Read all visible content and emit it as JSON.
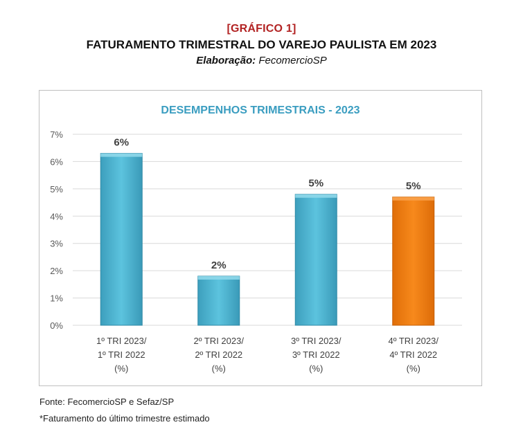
{
  "header": {
    "tag": "[GRÁFICO 1]",
    "title": "FATURAMENTO TRIMESTRAL DO VAREJO PAULISTA EM 2023",
    "credit_label": "Elaboração:",
    "credit_value": "FecomercioSP"
  },
  "chart_data": {
    "type": "bar",
    "title": "DESEMPENHOS TRIMESTRAIS - 2023",
    "categories": [
      [
        "1º TRI 2023/",
        "1º TRI 2022",
        "(%)"
      ],
      [
        "2º TRI 2023/",
        "2º TRI 2022",
        "(%)"
      ],
      [
        "3º TRI 2023/",
        "3º TRI 2022",
        "(%)"
      ],
      [
        "4º TRI 2023/",
        "4º TRI 2022",
        "(%)"
      ]
    ],
    "values": [
      6.3,
      1.8,
      4.8,
      4.7
    ],
    "data_labels": [
      "6%",
      "2%",
      "5%",
      "5%"
    ],
    "ylim": [
      0,
      7
    ],
    "yticks": [
      "0%",
      "1%",
      "2%",
      "3%",
      "4%",
      "5%",
      "6%",
      "7%"
    ],
    "grid": true,
    "colors": [
      "#4bb3cf",
      "#4bb3cf",
      "#4bb3cf",
      "#f07f13"
    ],
    "title_color": "#3a9dc0"
  },
  "footer": {
    "source": "Fonte: FecomercioSP e Sefaz/SP",
    "note": "*Faturamento do último trimestre estimado"
  }
}
